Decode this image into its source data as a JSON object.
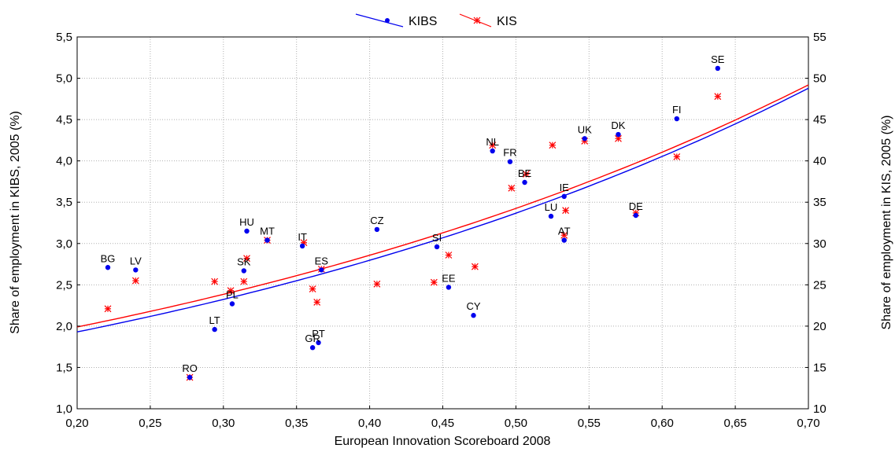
{
  "chart_data": {
    "type": "scatter",
    "xlabel": "European Innovation Scoreboard 2008",
    "ylabel_left": "Share of employment in KIBS, 2005 (%)",
    "ylabel_right": "Share of employment in KIS, 2005 (%)",
    "xlim": [
      0.2,
      0.7
    ],
    "ylim_left": [
      1.0,
      5.5
    ],
    "ylim_right": [
      10,
      55
    ],
    "x_ticks": [
      "0,20",
      "0,25",
      "0,30",
      "0,35",
      "0,40",
      "0,45",
      "0,50",
      "0,55",
      "0,60",
      "0,65",
      "0,70"
    ],
    "y_left_ticks": [
      "1,0",
      "1,5",
      "2,0",
      "2,5",
      "3,0",
      "3,5",
      "4,0",
      "4,5",
      "5,0",
      "5,5"
    ],
    "y_right_ticks": [
      "10",
      "15",
      "20",
      "25",
      "30",
      "35",
      "40",
      "45",
      "50",
      "55"
    ],
    "legend_position": "top-center",
    "grid": true,
    "series": [
      {
        "name": "KIBS",
        "axis": "left",
        "color": "#0000ee",
        "marker": "dot",
        "points": [
          {
            "label": "BG",
            "x": 0.221,
            "y": 2.71
          },
          {
            "label": "LV",
            "x": 0.24,
            "y": 2.68
          },
          {
            "label": "RO",
            "x": 0.277,
            "y": 1.38
          },
          {
            "label": "LT",
            "x": 0.294,
            "y": 1.96
          },
          {
            "label": "PL",
            "x": 0.306,
            "y": 2.27
          },
          {
            "label": "SK",
            "x": 0.314,
            "y": 2.67
          },
          {
            "label": "HU",
            "x": 0.316,
            "y": 3.15
          },
          {
            "label": "MT",
            "x": 0.33,
            "y": 3.04
          },
          {
            "label": "IT",
            "x": 0.354,
            "y": 2.97
          },
          {
            "label": "GR",
            "x": 0.361,
            "y": 1.74
          },
          {
            "label": "PT",
            "x": 0.365,
            "y": 1.8
          },
          {
            "label": "ES",
            "x": 0.367,
            "y": 2.68
          },
          {
            "label": "CZ",
            "x": 0.405,
            "y": 3.17
          },
          {
            "label": "SI",
            "x": 0.446,
            "y": 2.96
          },
          {
            "label": "EE",
            "x": 0.454,
            "y": 2.47
          },
          {
            "label": "CY",
            "x": 0.471,
            "y": 2.13
          },
          {
            "label": "NL",
            "x": 0.484,
            "y": 4.12
          },
          {
            "label": "FR",
            "x": 0.496,
            "y": 3.99
          },
          {
            "label": "BE",
            "x": 0.506,
            "y": 3.74
          },
          {
            "label": "LU",
            "x": 0.524,
            "y": 3.33
          },
          {
            "label": "AT",
            "x": 0.533,
            "y": 3.04
          },
          {
            "label": "IE",
            "x": 0.533,
            "y": 3.57
          },
          {
            "label": "UK",
            "x": 0.547,
            "y": 4.27
          },
          {
            "label": "DK",
            "x": 0.57,
            "y": 4.32
          },
          {
            "label": "DE",
            "x": 0.582,
            "y": 3.34
          },
          {
            "label": "FI",
            "x": 0.61,
            "y": 4.51
          },
          {
            "label": "SE",
            "x": 0.638,
            "y": 5.12
          }
        ]
      },
      {
        "name": "KIS",
        "axis": "right",
        "color": "#ff0000",
        "marker": "asterisk",
        "points": [
          {
            "x": 0.221,
            "y": 22.1
          },
          {
            "x": 0.24,
            "y": 25.5
          },
          {
            "x": 0.277,
            "y": 13.8
          },
          {
            "x": 0.294,
            "y": 25.4
          },
          {
            "x": 0.305,
            "y": 24.3
          },
          {
            "x": 0.314,
            "y": 25.4
          },
          {
            "x": 0.316,
            "y": 28.2
          },
          {
            "x": 0.33,
            "y": 30.4
          },
          {
            "x": 0.355,
            "y": 30.1
          },
          {
            "x": 0.361,
            "y": 24.5
          },
          {
            "x": 0.364,
            "y": 22.9
          },
          {
            "x": 0.367,
            "y": 26.9
          },
          {
            "x": 0.405,
            "y": 25.1
          },
          {
            "x": 0.444,
            "y": 25.3
          },
          {
            "x": 0.454,
            "y": 28.6
          },
          {
            "x": 0.472,
            "y": 27.2
          },
          {
            "x": 0.484,
            "y": 41.9
          },
          {
            "x": 0.497,
            "y": 36.7
          },
          {
            "x": 0.507,
            "y": 38.4
          },
          {
            "x": 0.525,
            "y": 41.9
          },
          {
            "x": 0.533,
            "y": 31.0
          },
          {
            "x": 0.534,
            "y": 34.0
          },
          {
            "x": 0.547,
            "y": 42.4
          },
          {
            "x": 0.57,
            "y": 42.7
          },
          {
            "x": 0.582,
            "y": 33.7
          },
          {
            "x": 0.61,
            "y": 40.5
          },
          {
            "x": 0.638,
            "y": 47.8
          }
        ]
      }
    ],
    "fits": [
      {
        "series": "KIBS",
        "axis": "left",
        "color": "#0000ee",
        "x": [
          0.2,
          0.7
        ],
        "y": [
          1.93,
          4.88
        ]
      },
      {
        "series": "KIS",
        "axis": "right",
        "color": "#ff0000",
        "x": [
          0.2,
          0.7
        ],
        "y": [
          19.9,
          49.2
        ]
      }
    ]
  }
}
